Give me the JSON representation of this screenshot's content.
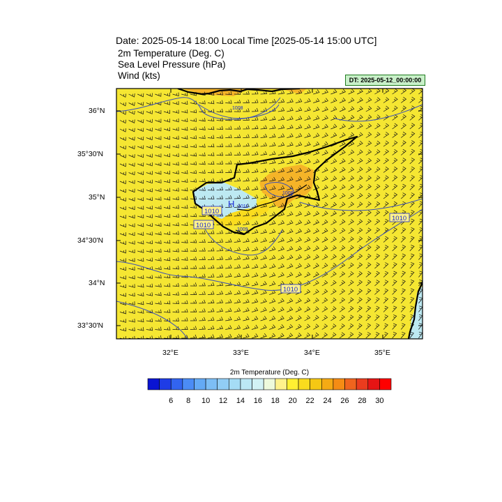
{
  "header": {
    "title": "Date: 2025-05-14  18:00 Local Time [2025-05-14  15:00 UTC]",
    "fields": [
      "2m Temperature (Deg. C)",
      "Sea Level Pressure   (hPa)",
      "Wind   (kts)"
    ],
    "dt_label": "DT: 2025-05-12_00:00:00"
  },
  "map": {
    "lat_ticks": [
      "36°N",
      "35°30'N",
      "35°N",
      "34°30'N",
      "34°N",
      "33°30'N"
    ],
    "lon_ticks": [
      "32°E",
      "33°E",
      "34°E",
      "35°E"
    ],
    "pressure_labels": [
      "1010",
      "1010",
      "1010",
      "1010",
      "1008",
      "1008",
      "1009",
      "1011"
    ],
    "high_marker": "H"
  },
  "colorbar": {
    "title": "2m Temperature (Deg. C)",
    "labels": [
      "6",
      "8",
      "10",
      "12",
      "14",
      "16",
      "18",
      "20",
      "22",
      "24",
      "26",
      "28",
      "30"
    ],
    "colors": [
      "#0a14d2",
      "#1e3ce6",
      "#3264f0",
      "#4b8cf5",
      "#64aaf5",
      "#7dbef5",
      "#91cdf5",
      "#a5dcf5",
      "#bce8f5",
      "#d2f2f5",
      "#eefadc",
      "#fff28c",
      "#fff032",
      "#fadc1e",
      "#f5c814",
      "#f5aa14",
      "#f58c14",
      "#f0641e",
      "#eb3c1e",
      "#e61414",
      "#ff0000"
    ],
    "ocean_color": "#f5e632",
    "land_color": "#f5b428",
    "cool_color": "#bde9f2"
  }
}
